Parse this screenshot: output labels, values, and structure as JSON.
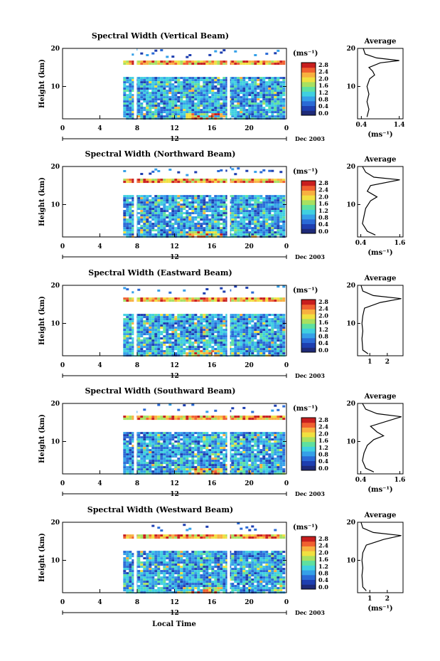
{
  "colors": {
    "scale": [
      "#1e2a78",
      "#1e3fb0",
      "#2a6ad6",
      "#35a0e8",
      "#3fd0e0",
      "#5ee0a0",
      "#a8e060",
      "#f0e040",
      "#f8b040",
      "#f06030",
      "#c81e1e"
    ],
    "background": "#ffffff"
  },
  "x_axis": {
    "ticks": [
      "0",
      "4",
      "8",
      "12",
      "16",
      "20",
      "0"
    ],
    "date_tick": "12",
    "date_label": "Dec 2003",
    "xlabel": "Local Time"
  },
  "colorbar": {
    "unit": "(ms⁻¹)",
    "ticks": [
      "2.8",
      "2.4",
      "2.0",
      "1.6",
      "1.2",
      "0.8",
      "0.4",
      "0.0"
    ]
  },
  "chart_data": [
    {
      "type": "heatmap",
      "title": "Spectral Width (Vertical Beam)",
      "ylabel": "Height (km)",
      "yticks": [
        "20",
        "10"
      ],
      "xlim": [
        0,
        24
      ],
      "ylim": [
        1.5,
        20
      ],
      "data_start_hour": 6.5,
      "gaps_hours": [
        7.8,
        17.8
      ],
      "avg_title": "Average",
      "avg_xticks": [
        "0.4",
        "1.4"
      ],
      "avg_xlim": [
        0.3,
        1.5
      ],
      "avg_xlabel": "(ms⁻¹)",
      "avg_profile": [
        [
          0.55,
          2
        ],
        [
          0.6,
          4
        ],
        [
          0.55,
          6
        ],
        [
          0.6,
          8
        ],
        [
          0.55,
          10
        ],
        [
          0.62,
          12
        ],
        [
          0.75,
          13
        ],
        [
          0.7,
          14
        ],
        [
          0.6,
          15
        ],
        [
          0.9,
          16.2
        ],
        [
          1.4,
          16.8
        ],
        [
          0.8,
          17.5
        ],
        [
          0.5,
          18.5
        ],
        [
          0.45,
          20
        ]
      ]
    },
    {
      "type": "heatmap",
      "title": "Spectral Width (Northward Beam)",
      "ylabel": "Height (km)",
      "yticks": [
        "20",
        "10"
      ],
      "xlim": [
        0,
        24
      ],
      "ylim": [
        1.5,
        20
      ],
      "data_start_hour": 6.5,
      "gaps_hours": [
        7.8,
        17.8
      ],
      "avg_title": "Average",
      "avg_xticks": [
        "0.4",
        "1.6"
      ],
      "avg_xlim": [
        0.3,
        1.7
      ],
      "avg_xlabel": "(ms⁻¹)",
      "avg_profile": [
        [
          0.85,
          2
        ],
        [
          0.6,
          3
        ],
        [
          0.45,
          5
        ],
        [
          0.5,
          7
        ],
        [
          0.55,
          9
        ],
        [
          0.7,
          11
        ],
        [
          0.9,
          12
        ],
        [
          0.6,
          13.5
        ],
        [
          0.7,
          15
        ],
        [
          1.6,
          16.5
        ],
        [
          0.8,
          17.2
        ],
        [
          0.55,
          18.5
        ],
        [
          0.45,
          20
        ]
      ]
    },
    {
      "type": "heatmap",
      "title": "Spectral Width (Eastward Beam)",
      "ylabel": "Height (km)",
      "yticks": [
        "20",
        "10"
      ],
      "xlim": [
        0,
        24
      ],
      "ylim": [
        1.5,
        20
      ],
      "data_start_hour": 6.5,
      "gaps_hours": [
        7.8,
        17.8
      ],
      "avg_title": "Average",
      "avg_xticks": [
        "1",
        "2"
      ],
      "avg_xlim": [
        0.3,
        2.9
      ],
      "avg_xlabel": "",
      "avg_profile": [
        [
          0.9,
          2
        ],
        [
          0.6,
          3
        ],
        [
          0.55,
          6
        ],
        [
          0.6,
          8
        ],
        [
          0.55,
          10
        ],
        [
          0.6,
          12
        ],
        [
          0.7,
          14
        ],
        [
          1.6,
          15.5
        ],
        [
          2.8,
          16.5
        ],
        [
          1.2,
          17.3
        ],
        [
          0.6,
          18.5
        ],
        [
          0.5,
          20
        ]
      ]
    },
    {
      "type": "heatmap",
      "title": "Spectral Width (Southward Beam)",
      "ylabel": "Height (km)",
      "yticks": [
        "20",
        "10"
      ],
      "xlim": [
        0,
        24
      ],
      "ylim": [
        1.5,
        20
      ],
      "data_start_hour": 6.5,
      "gaps_hours": [
        7.8,
        17.8
      ],
      "avg_title": "Average",
      "avg_xticks": [
        "0.4",
        "1.6"
      ],
      "avg_xlim": [
        0.3,
        1.7
      ],
      "avg_xlabel": "(ms⁻¹)",
      "avg_profile": [
        [
          0.8,
          2
        ],
        [
          0.55,
          3
        ],
        [
          0.45,
          5
        ],
        [
          0.5,
          7
        ],
        [
          0.6,
          9
        ],
        [
          0.8,
          10.5
        ],
        [
          1.1,
          11.5
        ],
        [
          0.9,
          12.5
        ],
        [
          0.7,
          14
        ],
        [
          1.65,
          16.5
        ],
        [
          0.9,
          17.3
        ],
        [
          0.55,
          18.5
        ],
        [
          0.45,
          20
        ]
      ]
    },
    {
      "type": "heatmap",
      "title": "Spectral Width (Westward Beam)",
      "ylabel": "Height (km)",
      "yticks": [
        "20",
        "10"
      ],
      "xlim": [
        0,
        24
      ],
      "ylim": [
        1.5,
        20
      ],
      "data_start_hour": 6.5,
      "gaps_hours": [
        7.8,
        17.8
      ],
      "avg_title": "Average",
      "avg_xticks": [
        "1",
        "2"
      ],
      "avg_xlim": [
        0.3,
        2.9
      ],
      "avg_xlabel": "(ms⁻¹)",
      "avg_profile": [
        [
          0.8,
          2
        ],
        [
          0.6,
          3
        ],
        [
          0.55,
          6
        ],
        [
          0.6,
          8
        ],
        [
          0.55,
          10
        ],
        [
          0.6,
          12
        ],
        [
          0.8,
          14
        ],
        [
          1.8,
          15.5
        ],
        [
          2.8,
          16.5
        ],
        [
          1.2,
          17.3
        ],
        [
          0.6,
          18.5
        ],
        [
          0.5,
          20
        ]
      ]
    }
  ]
}
